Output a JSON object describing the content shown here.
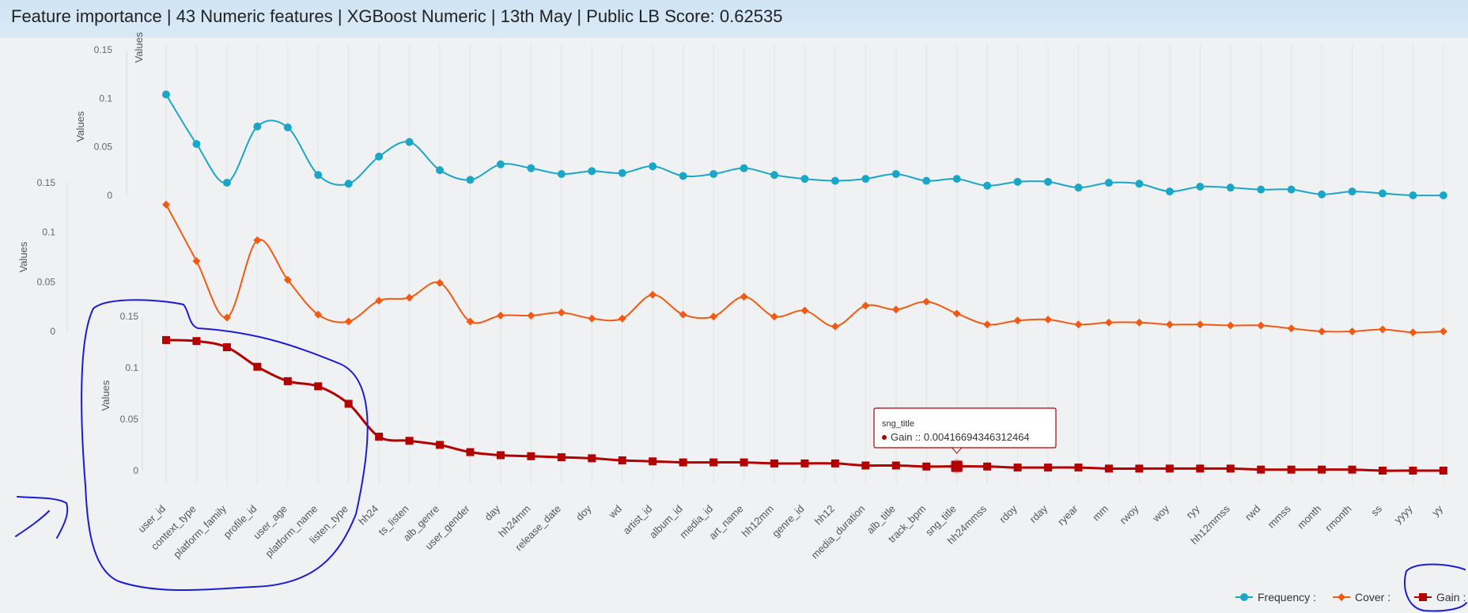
{
  "window": {
    "title": "Feature importance | 43 Numeric features | XGBoost Numeric | 13th May | Public LB Score: 0.62535"
  },
  "legend": {
    "items": [
      {
        "label": "Frequency :",
        "color": "#1aa7c7",
        "marker": "circle"
      },
      {
        "label": "Cover :",
        "color": "#f25a13",
        "marker": "diamond"
      },
      {
        "label": "Gain :",
        "color": "#b30000",
        "marker": "square"
      }
    ]
  },
  "tooltip": {
    "title": "sng_title",
    "text": "Gain :: 0.00416694346312464"
  },
  "chart_data": {
    "type": "line",
    "title": "Feature importance | 43 Numeric features | XGBoost Numeric | 13th May | Public LB Score: 0.62535",
    "ylabel": "Values",
    "ylim": [
      0,
      0.15
    ],
    "yticks": [
      "0.15",
      "0.1",
      "0.05",
      "0"
    ],
    "categories": [
      "user_id",
      "context_type",
      "platform_family",
      "profile_id",
      "user_age",
      "platform_name",
      "listen_type",
      "hh24",
      "ts_listen",
      "alb_genre",
      "user_gender",
      "day",
      "hh24mm",
      "release_date",
      "doy",
      "wd",
      "artist_id",
      "album_id",
      "media_id",
      "art_name",
      "hh12mm",
      "genre_id",
      "hh12",
      "media_duration",
      "alb_title",
      "track_bpm",
      "sng_title",
      "hh24mmss",
      "rdoy",
      "rday",
      "ryear",
      "mm",
      "rwoy",
      "woy",
      "ryy",
      "hh12mmss",
      "rwd",
      "mmss",
      "month",
      "rmonth",
      "ss",
      "yyyy",
      "yy"
    ],
    "series": [
      {
        "name": "Frequency",
        "color": "#1aa7c7",
        "values": [
          0.104,
          0.053,
          0.013,
          0.071,
          0.07,
          0.021,
          0.012,
          0.04,
          0.055,
          0.026,
          0.016,
          0.032,
          0.028,
          0.022,
          0.025,
          0.023,
          0.03,
          0.02,
          0.022,
          0.028,
          0.021,
          0.017,
          0.015,
          0.017,
          0.022,
          0.015,
          0.017,
          0.01,
          0.014,
          0.014,
          0.008,
          0.013,
          0.012,
          0.004,
          0.009,
          0.008,
          0.006,
          0.006,
          0.001,
          0.004,
          0.002,
          0.0,
          0.0
        ]
      },
      {
        "name": "Cover",
        "color": "#f25a13",
        "values": [
          0.128,
          0.071,
          0.014,
          0.092,
          0.052,
          0.017,
          0.01,
          0.031,
          0.034,
          0.049,
          0.01,
          0.016,
          0.016,
          0.019,
          0.013,
          0.013,
          0.037,
          0.017,
          0.015,
          0.035,
          0.015,
          0.021,
          0.005,
          0.026,
          0.022,
          0.03,
          0.018,
          0.007,
          0.011,
          0.012,
          0.007,
          0.009,
          0.009,
          0.007,
          0.007,
          0.006,
          0.006,
          0.003,
          0.0,
          0.0,
          0.002,
          -0.001,
          0.0
        ]
      },
      {
        "name": "Gain",
        "color": "#b30000",
        "values": [
          0.127,
          0.126,
          0.12,
          0.101,
          0.087,
          0.082,
          0.065,
          0.033,
          0.029,
          0.025,
          0.018,
          0.015,
          0.014,
          0.013,
          0.012,
          0.01,
          0.009,
          0.008,
          0.008,
          0.008,
          0.007,
          0.007,
          0.007,
          0.005,
          0.005,
          0.004,
          0.0042,
          0.004,
          0.003,
          0.003,
          0.003,
          0.002,
          0.002,
          0.002,
          0.002,
          0.002,
          0.001,
          0.001,
          0.001,
          0.001,
          0.0,
          0.0,
          0.0
        ]
      }
    ]
  }
}
